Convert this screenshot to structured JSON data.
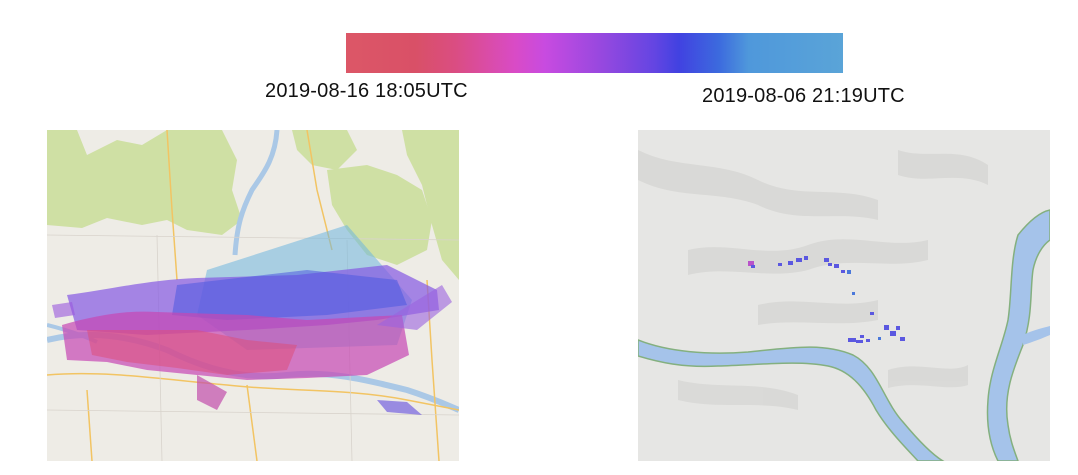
{
  "colorbar": {
    "start_label": "2019-08-16 18:05UTC",
    "end_label": "2019-08-06 21:19UTC",
    "colors": [
      "#dc5767",
      "#da4d82",
      "#d94bc6",
      "#9448df",
      "#4142e1",
      "#4f98db",
      "#5aa4d8"
    ]
  },
  "maps": {
    "left": {
      "description_colors": {
        "forest": "#cfe0a4",
        "land": "#eeece6",
        "water": "#aac8e6",
        "road": "#f2c463"
      }
    },
    "right": {
      "description_colors": {
        "terrain": "#e6e6e4",
        "river": "#a5c3ea",
        "river_edge": "#84b07f",
        "detection": "#5b58e0"
      }
    }
  }
}
